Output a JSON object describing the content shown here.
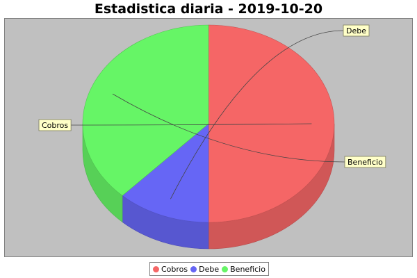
{
  "chart_data": {
    "type": "pie",
    "title": "Estadistica diaria - 2019-10-20",
    "categories": [
      "Cobros",
      "Debe",
      "Beneficio"
    ],
    "values": [
      50,
      12,
      38
    ],
    "colors": [
      "#f56666",
      "#6666f5",
      "#66f566"
    ],
    "legend_position": "bottom",
    "style": "3d"
  },
  "legend": {
    "items": [
      {
        "label": "Cobros",
        "color": "#f56666"
      },
      {
        "label": "Debe",
        "color": "#6666f5"
      },
      {
        "label": "Beneficio",
        "color": "#66f566"
      }
    ]
  }
}
